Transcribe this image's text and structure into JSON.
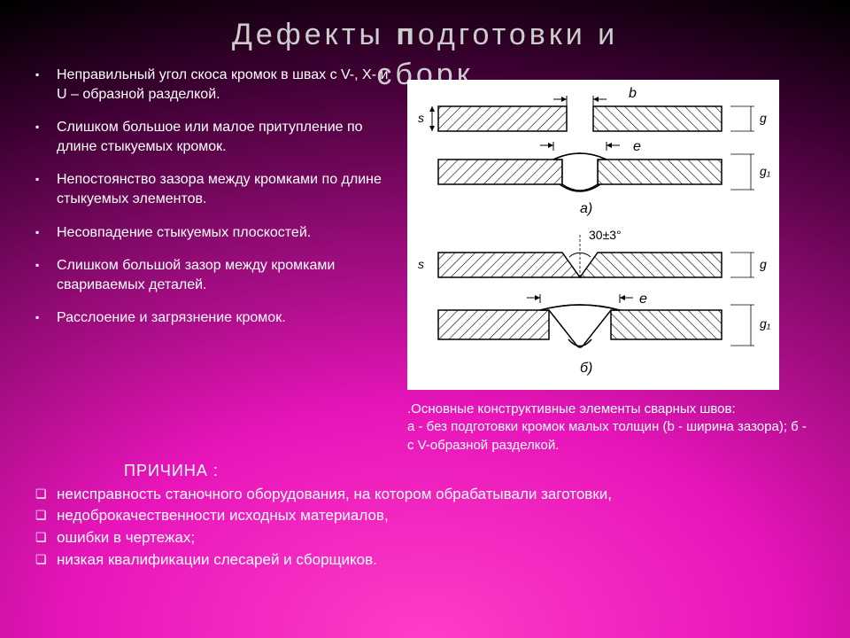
{
  "title_prefix": "Дефекты ",
  "title_cap": "п",
  "title_rest": "одготовки и",
  "title_line2": "сборк",
  "defects": [
    "Неправильный угол скоса кромок в швах с V-, X- и U – образной разделкой.",
    "Слишком большое или малое притупление по длине стыкуемых кромок.",
    "Непостоянство зазора между кромками по длине стыкуемых элементов.",
    "Несовпадение стыкуемых плоскостей.",
    "Слишком большой зазор между кромками свариваемых деталей.",
    "Расслоение и загрязнение кромок."
  ],
  "diagram": {
    "bg": "#ffffff",
    "stroke": "#000000",
    "hatch": "#000000",
    "label_b": "b",
    "label_e1": "e",
    "label_e2": "e",
    "label_a": "a)",
    "label_30": "30±3°",
    "label_b2": "б)",
    "label_s": "s",
    "label_g": "g",
    "label_g1": "g₁"
  },
  "caption": ".Основные конструктивные элементы сварных швов:\nа - без подготовки кромок малых толщин (b - ширина зазора); б - с V-образной разделкой.",
  "cause_label": "ПРИЧИНА :",
  "causes": [
    "неисправность станочного оборудования, на котором обрабатывали заготовки,",
    "недоброкачественности исходных материалов,",
    "ошибки в чертежах;",
    "низкая квалификации слесарей и сборщиков."
  ]
}
